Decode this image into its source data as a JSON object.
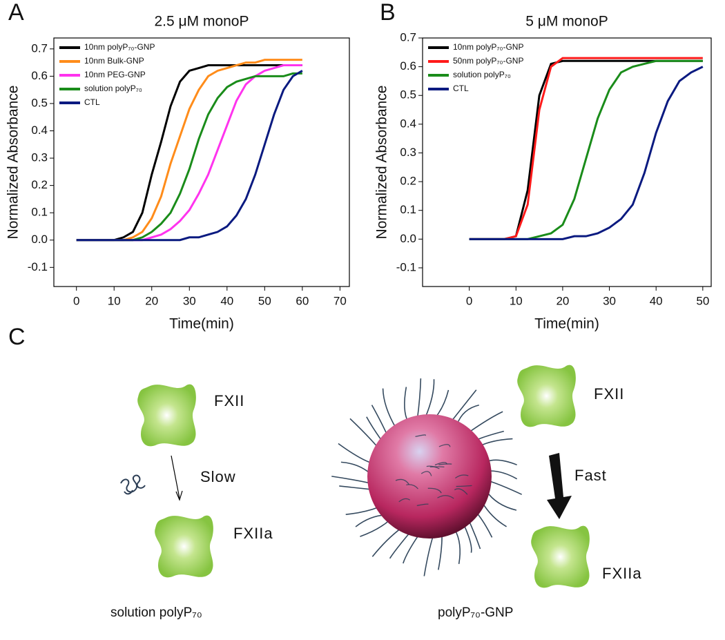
{
  "chart_data": [
    {
      "type": "line",
      "panel_label": "A",
      "title": "2.5 μM monoP",
      "x_label": "Time(min)",
      "y_label": "Normalized Absorbance",
      "x": [
        0,
        2.5,
        5,
        7.5,
        10,
        12.5,
        15,
        17.5,
        20,
        22.5,
        25,
        27.5,
        30,
        32.5,
        35,
        37.5,
        40,
        42.5,
        45,
        47.5,
        50,
        52.5,
        55,
        57.5,
        60
      ],
      "series": [
        {
          "name": "10nm polyP₇₀-GNP",
          "color": "#000000",
          "values": [
            0,
            0,
            0,
            0,
            0,
            0.01,
            0.03,
            0.1,
            0.24,
            0.36,
            0.49,
            0.58,
            0.62,
            0.63,
            0.64,
            0.64,
            0.64,
            0.64,
            0.64,
            0.64,
            0.64,
            0.64,
            0.64,
            0.64,
            0.64
          ]
        },
        {
          "name": "10nm Bulk-GNP",
          "color": "#ff8c1a",
          "values": [
            0,
            0,
            0,
            0,
            0,
            0,
            0.01,
            0.03,
            0.08,
            0.16,
            0.28,
            0.38,
            0.48,
            0.55,
            0.6,
            0.62,
            0.63,
            0.64,
            0.65,
            0.65,
            0.66,
            0.66,
            0.66,
            0.66,
            0.66
          ]
        },
        {
          "name": "10nm PEG-GNP",
          "color": "#ff33ee",
          "values": [
            0,
            0,
            0,
            0,
            0,
            0,
            0,
            0,
            0.01,
            0.02,
            0.04,
            0.07,
            0.11,
            0.17,
            0.24,
            0.33,
            0.42,
            0.51,
            0.57,
            0.6,
            0.62,
            0.63,
            0.64,
            0.64,
            0.64
          ]
        },
        {
          "name": "solution polyP₇₀",
          "color": "#1a8c1a",
          "values": [
            0,
            0,
            0,
            0,
            0,
            0,
            0,
            0.01,
            0.03,
            0.06,
            0.1,
            0.17,
            0.26,
            0.37,
            0.46,
            0.52,
            0.56,
            0.58,
            0.59,
            0.6,
            0.6,
            0.6,
            0.6,
            0.61,
            0.61
          ]
        },
        {
          "name": "CTL",
          "color": "#0a1a80",
          "values": [
            0,
            0,
            0,
            0,
            0,
            0,
            0,
            0,
            0,
            0,
            0,
            0,
            0.01,
            0.01,
            0.02,
            0.03,
            0.05,
            0.09,
            0.15,
            0.24,
            0.35,
            0.46,
            0.55,
            0.6,
            0.62
          ]
        }
      ],
      "xlim": [
        -6,
        72.5
      ],
      "ylim": [
        -0.17,
        0.74
      ],
      "xticks": [
        0,
        10,
        20,
        30,
        40,
        50,
        60,
        70
      ],
      "yticks": [
        -0.1,
        {
          "value": 0,
          "label": "0.0"
        },
        0.1,
        0.2,
        0.3,
        0.4,
        0.5,
        0.6,
        0.7
      ],
      "legend": "upper left"
    },
    {
      "type": "line",
      "panel_label": "B",
      "title": "5 μM monoP",
      "x_label": "Time(min)",
      "y_label": "Normalized Absorbance",
      "x": [
        0,
        2.5,
        5,
        7.5,
        10,
        12.5,
        15,
        17.5,
        20,
        22.5,
        25,
        27.5,
        30,
        32.5,
        35,
        37.5,
        40,
        42.5,
        45,
        47.5,
        50
      ],
      "series": [
        {
          "name": "10nm polyP₇₀-GNP",
          "color": "#000000",
          "values": [
            0,
            0,
            0,
            0,
            0.01,
            0.17,
            0.5,
            0.61,
            0.62,
            0.62,
            0.62,
            0.62,
            0.62,
            0.62,
            0.62,
            0.62,
            0.62,
            0.62,
            0.62,
            0.62,
            0.62
          ]
        },
        {
          "name": "50nm polyP₇₀-GNP",
          "color": "#ff1a1a",
          "values": [
            0,
            0,
            0,
            0,
            0.01,
            0.12,
            0.45,
            0.6,
            0.63,
            0.63,
            0.63,
            0.63,
            0.63,
            0.63,
            0.63,
            0.63,
            0.63,
            0.63,
            0.63,
            0.63,
            0.63
          ]
        },
        {
          "name": "solution polyP₇₀",
          "color": "#1a8c1a",
          "values": [
            0,
            0,
            0,
            0,
            0,
            0,
            0.01,
            0.02,
            0.05,
            0.14,
            0.28,
            0.42,
            0.52,
            0.58,
            0.6,
            0.61,
            0.62,
            0.62,
            0.62,
            0.62,
            0.62
          ]
        },
        {
          "name": "CTL",
          "color": "#0a1a80",
          "values": [
            0,
            0,
            0,
            0,
            0,
            0,
            0,
            0,
            0,
            0.01,
            0.01,
            0.02,
            0.04,
            0.07,
            0.12,
            0.23,
            0.37,
            0.48,
            0.55,
            0.58,
            0.6
          ]
        }
      ],
      "xlim": [
        -10,
        51.8
      ],
      "ylim": [
        -0.165,
        0.7
      ],
      "xticks": [
        0,
        10,
        20,
        30,
        40,
        50
      ],
      "yticks": [
        -0.1,
        {
          "value": 0,
          "label": "0.0"
        },
        0.1,
        0.2,
        0.3,
        0.4,
        0.5,
        0.6,
        0.7
      ],
      "legend": "upper left"
    }
  ],
  "diagram": {
    "panel_label": "C",
    "left": {
      "top_label": "FXII",
      "arrow_label": "Slow",
      "bottom_label": "FXIIa",
      "caption": "solution polyP₇₀"
    },
    "right": {
      "top_label": "FXII",
      "arrow_label": "Fast",
      "bottom_label": "FXIIa",
      "caption": "polyP₇₀-GNP"
    }
  }
}
